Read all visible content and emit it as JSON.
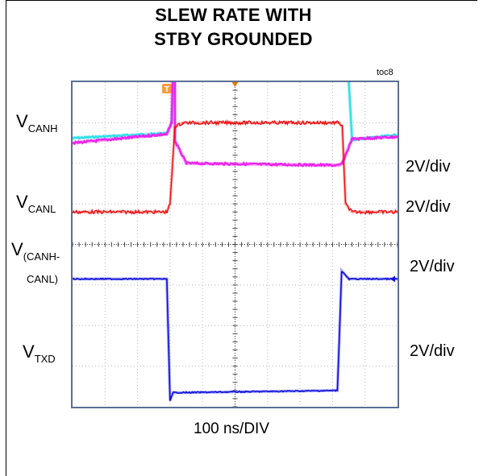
{
  "chart_data": {
    "type": "line",
    "title_line1": "SLEW RATE WITH",
    "title_line2": "STBY GROUNDED",
    "scope_tag": "toc8",
    "trigger_marker": "T",
    "xlabel": "100 ns/DIV",
    "x_unit": "ns",
    "x_divisions": 10,
    "y_divisions": 8,
    "xlim": [
      0,
      1000
    ],
    "series": [
      {
        "name": "VCANH",
        "label_main": "V",
        "label_sub": "CANH",
        "scale": "2V/div",
        "color": "#33e0e8",
        "y_div": [
          2.62,
          2.74,
          3.0,
          6.75,
          6.75,
          6.8,
          6.8,
          2.58,
          2.7
        ],
        "x_ns": [
          0,
          290,
          305,
          330,
          340,
          820,
          830,
          860,
          1000
        ]
      },
      {
        "name": "VCANL",
        "label_main": "V",
        "label_sub": "CANL",
        "scale": "2V/div",
        "color": "#ee22ee",
        "y_div": [
          2.5,
          2.72,
          3.0,
          6.75,
          2.55,
          2.0,
          1.95,
          2.0,
          2.6,
          2.65
        ],
        "x_ns": [
          0,
          290,
          305,
          315,
          315,
          350,
          820,
          830,
          860,
          1000
        ]
      },
      {
        "name": "V(CANH-CANL)",
        "label_main": "V",
        "label_sub1": "(CANH-",
        "label_sub2": "CANL)",
        "scale": "2V/div",
        "color": "#ee1111",
        "y_div": [
          0.8,
          0.8,
          1.0,
          2.9,
          3.0,
          3.0,
          2.9,
          1.0,
          0.8,
          0.8
        ],
        "x_ns": [
          0,
          290,
          300,
          315,
          340,
          820,
          830,
          840,
          860,
          1000
        ]
      },
      {
        "name": "VTXD",
        "label_main": "V",
        "label_sub": "TXD",
        "scale": "2V/div",
        "color": "#1010dd",
        "y_div": [
          -0.85,
          -0.85,
          -3.85,
          -3.65,
          -3.65,
          -3.6,
          -0.65,
          -0.85,
          -0.85
        ],
        "x_ns": [
          0,
          290,
          300,
          310,
          350,
          815,
          828,
          850,
          1000
        ]
      }
    ]
  },
  "labels": {
    "vcanh_main": "V",
    "vcanh_sub": "CANH",
    "vcanl_main": "V",
    "vcanl_sub": "CANL",
    "vdiff_main": "V",
    "vdiff_sub1": "(CANH-",
    "vdiff_sub2": "CANL)",
    "vtxd_main": "V",
    "vtxd_sub": "TXD",
    "scale1": "2V/div",
    "scale2": "2V/div",
    "scale3": "2V/div",
    "scale4": "2V/div"
  }
}
